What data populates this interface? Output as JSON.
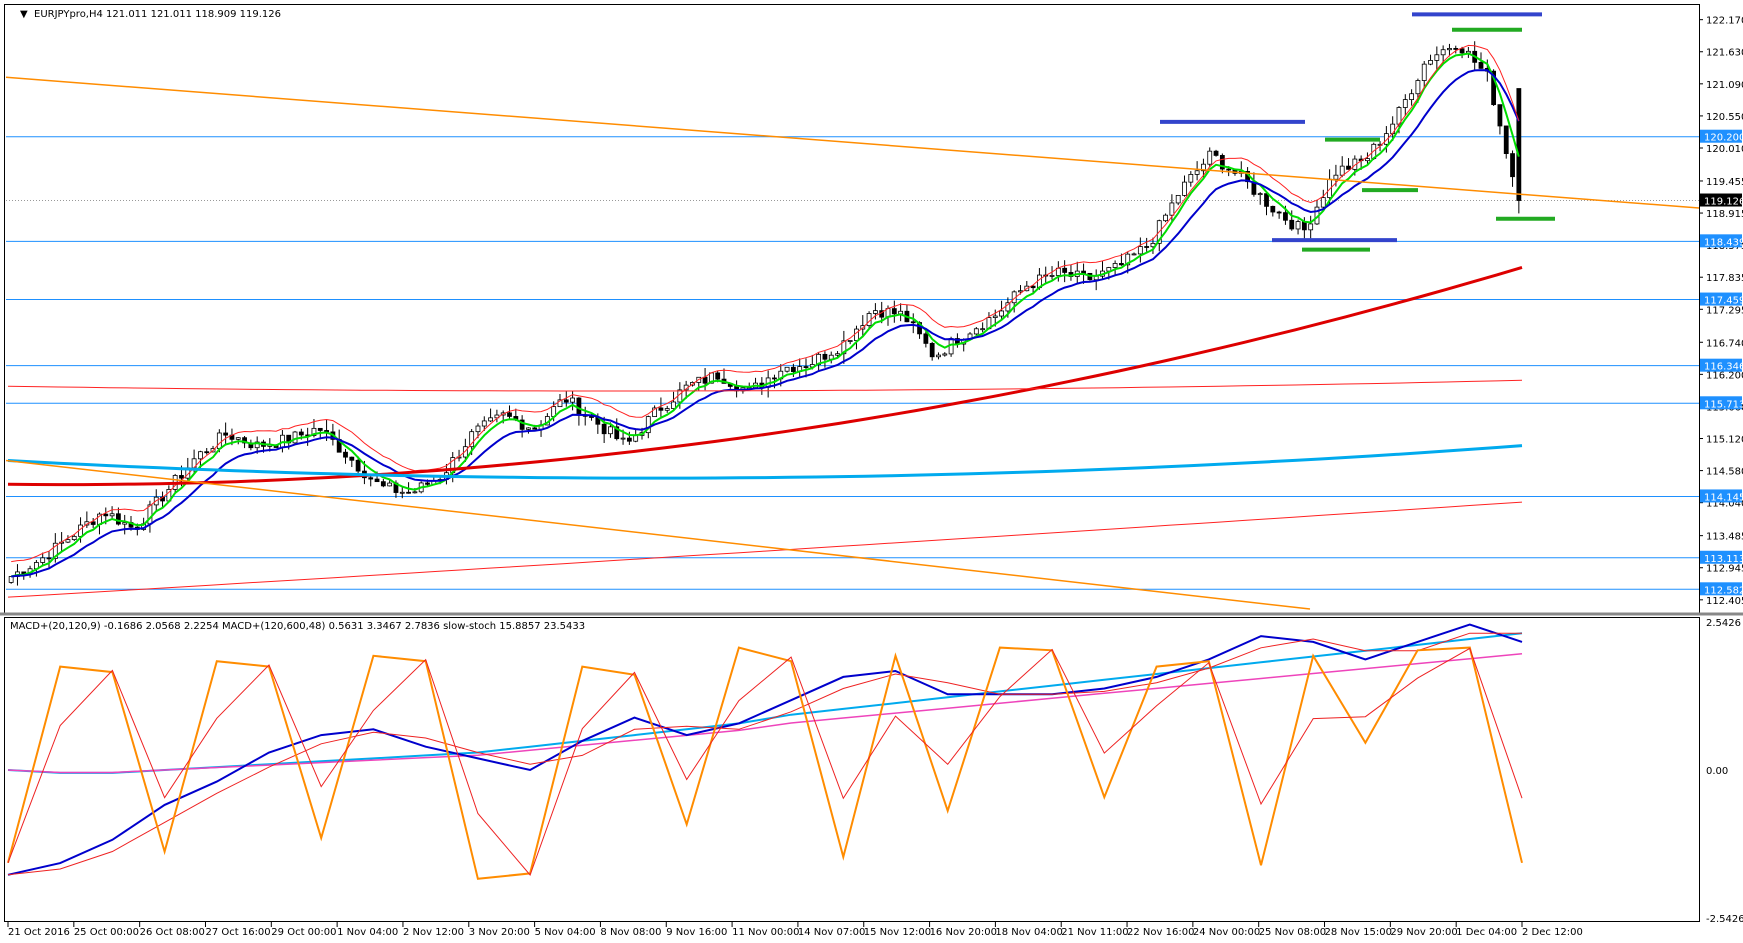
{
  "main": {
    "header": "EURJPYpro,H4  121.011 121.011 118.909 119.126",
    "price_labels": [
      "122.170",
      "121.630",
      "121.090",
      "120.550",
      "120.010",
      "119.455",
      "118.915",
      "118.375",
      "117.835",
      "117.295",
      "116.740",
      "116.200",
      "115.660",
      "115.120",
      "114.580",
      "114.040",
      "113.485",
      "112.945",
      "112.405"
    ],
    "highlighted_levels": [
      {
        "price": 120.2,
        "label": "120.200",
        "color": "#1e90ff"
      },
      {
        "price": 119.126,
        "label": "119.126",
        "color": "#000000"
      },
      {
        "price": 118.439,
        "label": "118.439",
        "color": "#1e90ff"
      },
      {
        "price": 117.459,
        "label": "117.459",
        "color": "#1e90ff"
      },
      {
        "price": 116.346,
        "label": "116.346",
        "color": "#1e90ff"
      },
      {
        "price": 115.713,
        "label": "115.713",
        "color": "#1e90ff"
      },
      {
        "price": 114.145,
        "label": "114.145",
        "color": "#1e90ff"
      },
      {
        "price": 113.113,
        "label": "113.113",
        "color": "#1e90ff"
      },
      {
        "price": 112.582,
        "label": "112.582",
        "color": "#1e90ff"
      }
    ]
  },
  "sub": {
    "header": "MACD+(20,120,9) -0.1686 2.0568 2.2254  MACD+(120,600,48) 0.5631 3.3467 2.7836  slow-stoch 15.8857 23.5433",
    "labels": [
      "2.5426",
      "0.00",
      "-2.5426"
    ]
  },
  "time_labels": [
    "21 Oct 2016",
    "25 Oct 00:00",
    "26 Oct 08:00",
    "27 Oct 16:00",
    "29 Oct 00:00",
    "1 Nov 04:00",
    "2 Nov 12:00",
    "3 Nov 20:00",
    "5 Nov 04:00",
    "8 Nov 08:00",
    "9 Nov 16:00",
    "11 Nov 00:00",
    "14 Nov 07:00",
    "15 Nov 12:00",
    "16 Nov 20:00",
    "18 Nov 04:00",
    "21 Nov 11:00",
    "22 Nov 16:00",
    "24 Nov 00:00",
    "25 Nov 08:00",
    "28 Nov 15:00",
    "29 Nov 20:00",
    "1 Dec 04:00",
    "2 Dec 12:00"
  ],
  "colors": {
    "bull_body": "#ffffff",
    "bear_body": "#000000",
    "ema_green": "#00dd00",
    "ema_blue": "#0000cc",
    "ma_red_thin": "#ff2222",
    "ma_red_thick": "#dd0000",
    "ma_cyan": "#00aaee",
    "trend_orange": "#ff8c00",
    "level_blue": "#1e90ff",
    "zone_navy": "#3344cc",
    "zone_green": "#22aa22",
    "stoch_orange": "#ff8c00",
    "stoch_red": "#ee2222",
    "macd_pink": "#ee44bb"
  },
  "chart_data": [
    {
      "type": "candlestick",
      "title": "EURJPYpro,H4",
      "ylim": [
        112.2,
        122.4
      ],
      "ohlc_last": {
        "open": 121.011,
        "high": 121.011,
        "low": 118.909,
        "close": 119.126
      },
      "x": "H4 bars, 21 Oct 2016 to 2 Dec 2016",
      "close_path": [
        112.8,
        113.1,
        113.5,
        113.9,
        113.6,
        114.2,
        114.8,
        115.2,
        115.0,
        115.1,
        115.3,
        114.8,
        114.3,
        114.2,
        114.5,
        115.2,
        115.5,
        115.3,
        115.8,
        115.4,
        115.0,
        115.6,
        116.0,
        116.2,
        115.9,
        116.3,
        116.4,
        116.7,
        117.3,
        117.2,
        116.5,
        116.9,
        117.2,
        117.7,
        117.9,
        117.8,
        118.0,
        118.4,
        119.3,
        119.9,
        119.5,
        119.0,
        118.6,
        119.6,
        119.8,
        120.5,
        121.5,
        121.8,
        121.2,
        119.126
      ]
    },
    {
      "type": "line",
      "title": "MACD+(20,120,9) -0.1686 2.0568 2.2254  MACD+(120,600,48) 0.5631 3.3467 2.7836  slow-stoch 15.8857 23.5433",
      "ylim": [
        -2.5426,
        2.5426
      ],
      "series": [
        {
          "name": "MACD+(20,120,9)",
          "values": [
            -1.8,
            -1.6,
            -1.2,
            -0.6,
            -0.2,
            0.3,
            0.6,
            0.7,
            0.4,
            0.2,
            0.0,
            0.5,
            0.9,
            0.6,
            0.8,
            1.2,
            1.6,
            1.7,
            1.3,
            1.3,
            1.3,
            1.4,
            1.6,
            1.9,
            2.3,
            2.2,
            1.9,
            2.2,
            2.5,
            2.2
          ]
        },
        {
          "name": "MACD+(120,600,48)",
          "values": [
            0.0,
            -0.05,
            -0.05,
            0.0,
            0.05,
            0.1,
            0.15,
            0.2,
            0.25,
            0.3,
            0.4,
            0.5,
            0.6,
            0.7,
            0.8,
            0.95,
            1.05,
            1.15,
            1.25,
            1.35,
            1.45,
            1.55,
            1.65,
            1.75,
            1.85,
            1.95,
            2.05,
            2.15,
            2.25,
            2.35
          ]
        },
        {
          "name": "slow-stoch",
          "values": [
            15.9,
            88,
            86,
            20,
            90,
            88,
            25,
            92,
            90,
            10,
            12,
            88,
            85,
            30,
            95,
            90,
            18,
            92,
            35,
            95,
            94,
            40,
            88,
            90,
            15,
            92,
            60,
            94,
            95,
            15.9
          ]
        }
      ]
    }
  ]
}
